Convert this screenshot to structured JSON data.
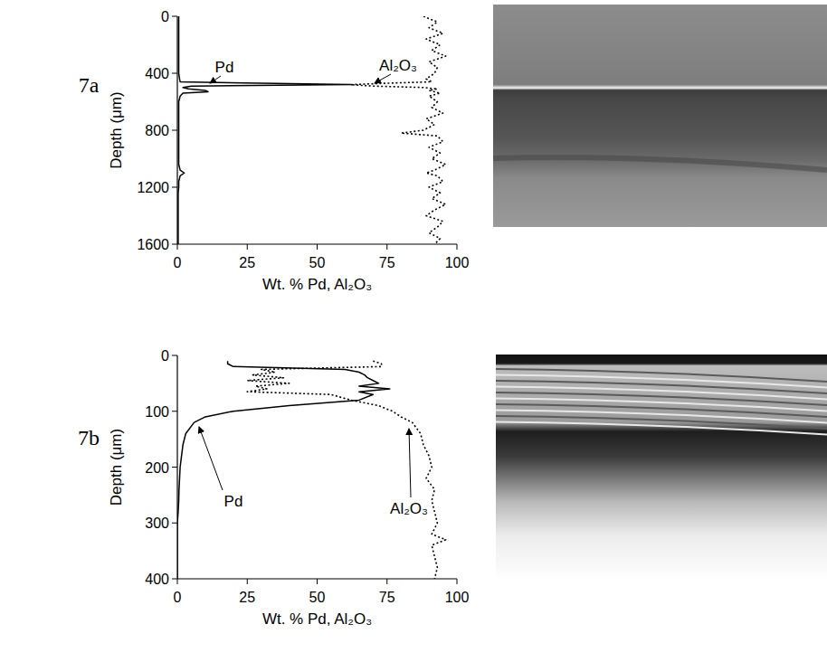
{
  "chart_data": [
    {
      "type": "line",
      "title": "7a",
      "xlabel": "Wt. % Pd, Al₂O₃",
      "ylabel": "Depth (μm)",
      "xlim": [
        0,
        100
      ],
      "xticks": [
        0,
        25,
        50,
        75,
        100
      ],
      "ylim": [
        1600,
        0
      ],
      "yticks": [
        0,
        400,
        800,
        1200,
        1600
      ],
      "y": [
        0,
        40,
        80,
        120,
        160,
        200,
        240,
        280,
        320,
        360,
        400,
        440,
        460,
        470,
        480,
        490,
        500,
        510,
        520,
        530,
        540,
        560,
        600,
        640,
        680,
        720,
        760,
        800,
        820,
        840,
        880,
        920,
        960,
        1000,
        1040,
        1080,
        1100,
        1120,
        1160,
        1200,
        1240,
        1280,
        1320,
        1360,
        1400,
        1440,
        1480,
        1520,
        1560,
        1600
      ],
      "series": [
        {
          "name": "Pd",
          "color": "#000000",
          "line_style": "solid",
          "values": [
            0.5,
            0.5,
            0.5,
            0.5,
            0.5,
            0.5,
            0.5,
            0.5,
            0.5,
            0.5,
            0.5,
            0.8,
            1,
            30,
            62,
            5,
            2,
            4,
            10,
            11,
            2,
            1,
            0.5,
            0.5,
            0.5,
            0.5,
            0.5,
            0.5,
            0.5,
            0.5,
            0.5,
            0.5,
            0.5,
            0.5,
            0.5,
            1,
            2.5,
            1,
            0.5,
            0.5,
            0.3,
            0.3,
            0.3,
            0.3,
            0.3,
            0.3,
            0.3,
            0.3,
            0.3,
            0.3
          ]
        },
        {
          "name": "Al₂O₃",
          "color": "#000000",
          "line_style": "dotted",
          "values": [
            88,
            93,
            90,
            95,
            89,
            94,
            91,
            96,
            90,
            93,
            92,
            89,
            91,
            75,
            62,
            70,
            88,
            93,
            90,
            92,
            94,
            90,
            93,
            91,
            95,
            89,
            92,
            88,
            80,
            93,
            95,
            90,
            94,
            91,
            96,
            92,
            89,
            93,
            95,
            90,
            94,
            91,
            96,
            92,
            89,
            95,
            93,
            90,
            94,
            92
          ]
        }
      ]
    },
    {
      "type": "line",
      "title": "7b",
      "xlabel": "Wt. % Pd, Al₂O₃",
      "ylabel": "Depth (μm)",
      "xlim": [
        0,
        100
      ],
      "xticks": [
        0,
        25,
        50,
        75,
        100
      ],
      "ylim": [
        400,
        0
      ],
      "yticks": [
        0,
        100,
        200,
        300,
        400
      ],
      "y": [
        10,
        15,
        20,
        25,
        30,
        35,
        40,
        45,
        50,
        55,
        60,
        65,
        70,
        80,
        90,
        100,
        110,
        120,
        140,
        160,
        180,
        200,
        220,
        240,
        260,
        280,
        300,
        320,
        330,
        340,
        360,
        380,
        400
      ],
      "series": [
        {
          "name": "Pd",
          "color": "#000000",
          "line_style": "solid",
          "values": [
            18,
            18,
            20,
            60,
            65,
            67,
            68,
            70,
            72,
            65,
            76,
            65,
            70,
            65,
            40,
            20,
            10,
            6,
            3,
            2,
            1.5,
            1,
            0.8,
            0.6,
            0.5,
            0.3,
            0,
            0,
            0,
            0,
            0,
            0,
            0
          ]
        },
        {
          "name": "Al₂O₃",
          "color": "#000000",
          "line_style": "dotted",
          "values": [
            70,
            73,
            73,
            30,
            35,
            27,
            38,
            25,
            40,
            28,
            32,
            25,
            55,
            62,
            72,
            77,
            80,
            84,
            87,
            88,
            90,
            91,
            89,
            92,
            91,
            92,
            93,
            91,
            96,
            91,
            92,
            93,
            92
          ]
        }
      ]
    }
  ]
}
